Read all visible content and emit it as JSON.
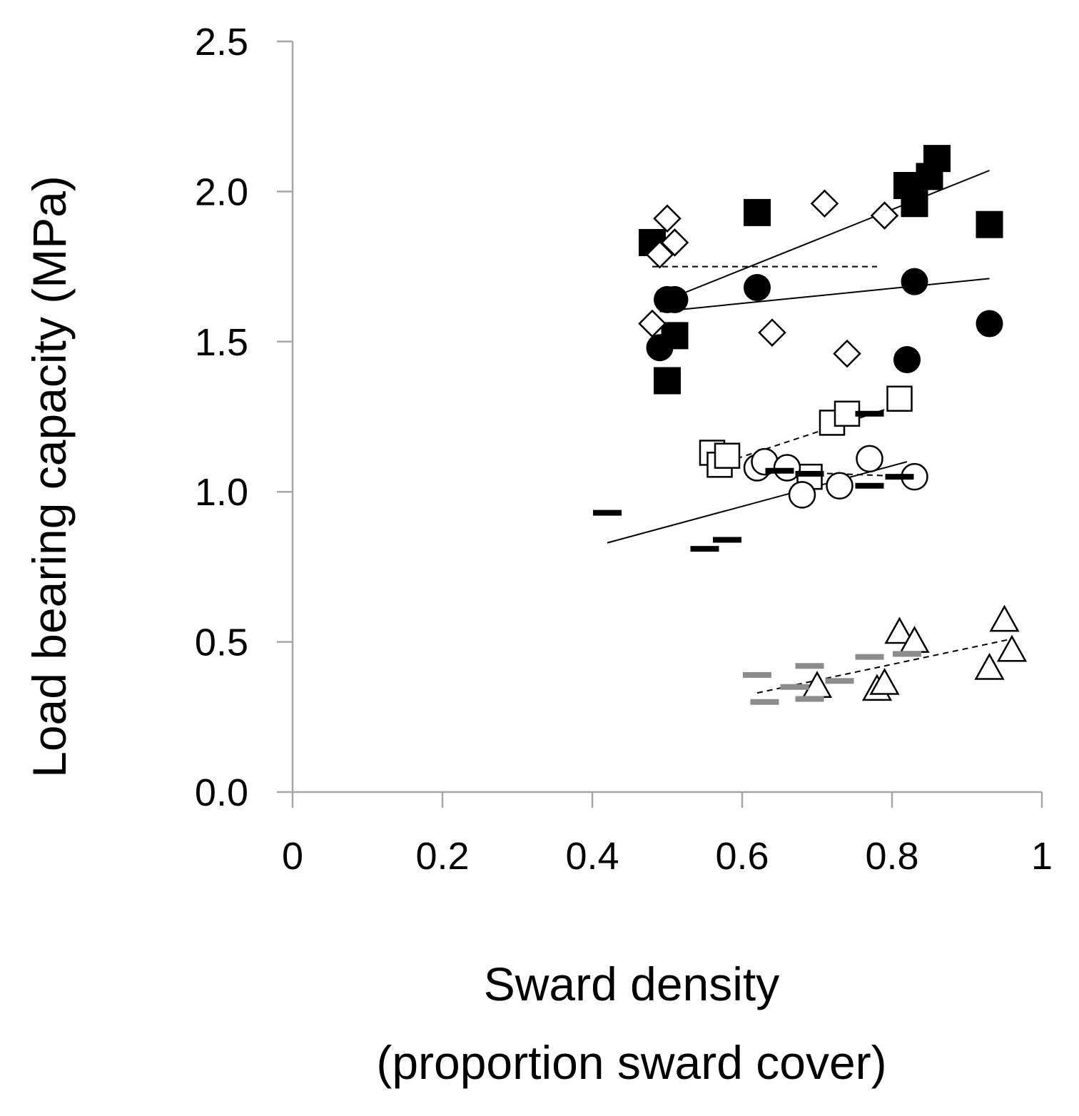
{
  "chart_data": {
    "type": "scatter",
    "xlabel": "Sward density",
    "xlabel_line2": "(proportion sward cover)",
    "ylabel": "Load bearing capacity (MPa)",
    "xlim": [
      0,
      1
    ],
    "ylim": [
      0,
      2.5
    ],
    "x_ticks": [
      "0",
      "0.2",
      "0.4",
      "0.6",
      "0.8",
      "1"
    ],
    "y_ticks": [
      "0.0",
      "0.5",
      "1.0",
      "1.5",
      "2.0",
      "2.5"
    ],
    "grid": false,
    "legend": "none",
    "colors": {
      "black": "#000000",
      "grey": "#8c8c8c",
      "axis": "#a6a6a6"
    },
    "series": [
      {
        "marker": "filled-square",
        "points": [
          [
            0.48,
            1.83
          ],
          [
            0.51,
            1.52
          ],
          [
            0.5,
            1.37
          ],
          [
            0.62,
            1.93
          ],
          [
            0.82,
            2.02
          ],
          [
            0.83,
            1.96
          ],
          [
            0.85,
            2.05
          ],
          [
            0.86,
            2.11
          ],
          [
            0.93,
            1.89
          ]
        ],
        "trendline": {
          "style": "solid",
          "x": [
            0.5,
            0.93
          ],
          "y": [
            1.64,
            2.07
          ]
        }
      },
      {
        "marker": "filled-circle",
        "points": [
          [
            0.49,
            1.48
          ],
          [
            0.5,
            1.64
          ],
          [
            0.51,
            1.64
          ],
          [
            0.62,
            1.68
          ],
          [
            0.82,
            1.44
          ],
          [
            0.83,
            1.7
          ],
          [
            0.93,
            1.56
          ]
        ],
        "trendline": {
          "style": "solid",
          "x": [
            0.49,
            0.93
          ],
          "y": [
            1.6,
            1.71
          ]
        }
      },
      {
        "marker": "open-diamond",
        "points": [
          [
            0.5,
            1.91
          ],
          [
            0.51,
            1.83
          ],
          [
            0.49,
            1.79
          ],
          [
            0.48,
            1.56
          ],
          [
            0.64,
            1.53
          ],
          [
            0.71,
            1.96
          ],
          [
            0.74,
            1.46
          ],
          [
            0.79,
            1.92
          ]
        ],
        "trendline": {
          "style": "dashed",
          "x": [
            0.48,
            0.78
          ],
          "y": [
            1.75,
            1.75
          ]
        }
      },
      {
        "marker": "open-square",
        "points": [
          [
            0.56,
            1.13
          ],
          [
            0.57,
            1.09
          ],
          [
            0.58,
            1.12
          ],
          [
            0.69,
            1.05
          ],
          [
            0.72,
            1.23
          ],
          [
            0.74,
            1.26
          ],
          [
            0.81,
            1.31
          ]
        ],
        "trendline": {
          "style": "dashed",
          "x": [
            0.58,
            0.81
          ],
          "y": [
            1.1,
            1.29
          ]
        }
      },
      {
        "marker": "open-circle",
        "points": [
          [
            0.62,
            1.08
          ],
          [
            0.63,
            1.1
          ],
          [
            0.66,
            1.08
          ],
          [
            0.68,
            0.99
          ],
          [
            0.73,
            1.02
          ],
          [
            0.77,
            1.11
          ],
          [
            0.83,
            1.05
          ]
        ],
        "trendline": {
          "style": "dashed",
          "x": [
            0.62,
            0.83
          ],
          "y": [
            1.07,
            1.05
          ]
        }
      },
      {
        "marker": "black-dash",
        "points": [
          [
            0.42,
            0.93
          ],
          [
            0.55,
            0.81
          ],
          [
            0.58,
            0.84
          ],
          [
            0.65,
            1.07
          ],
          [
            0.69,
            1.06
          ],
          [
            0.77,
            1.26
          ],
          [
            0.77,
            1.02
          ],
          [
            0.81,
            1.05
          ]
        ],
        "trendline": {
          "style": "solid",
          "x": [
            0.42,
            0.82
          ],
          "y": [
            0.83,
            1.1
          ]
        }
      },
      {
        "marker": "open-triangle",
        "points": [
          [
            0.7,
            0.35
          ],
          [
            0.78,
            0.34
          ],
          [
            0.79,
            0.36
          ],
          [
            0.81,
            0.53
          ],
          [
            0.83,
            0.5
          ],
          [
            0.93,
            0.41
          ],
          [
            0.95,
            0.57
          ],
          [
            0.96,
            0.47
          ]
        ],
        "trendline": {
          "style": "dashed",
          "x": [
            0.62,
            0.96
          ],
          "y": [
            0.33,
            0.51
          ]
        }
      },
      {
        "marker": "grey-dash",
        "points": [
          [
            0.62,
            0.39
          ],
          [
            0.63,
            0.3
          ],
          [
            0.67,
            0.35
          ],
          [
            0.69,
            0.42
          ],
          [
            0.69,
            0.31
          ],
          [
            0.73,
            0.37
          ],
          [
            0.77,
            0.45
          ],
          [
            0.82,
            0.46
          ]
        ],
        "trendline": null
      }
    ]
  }
}
